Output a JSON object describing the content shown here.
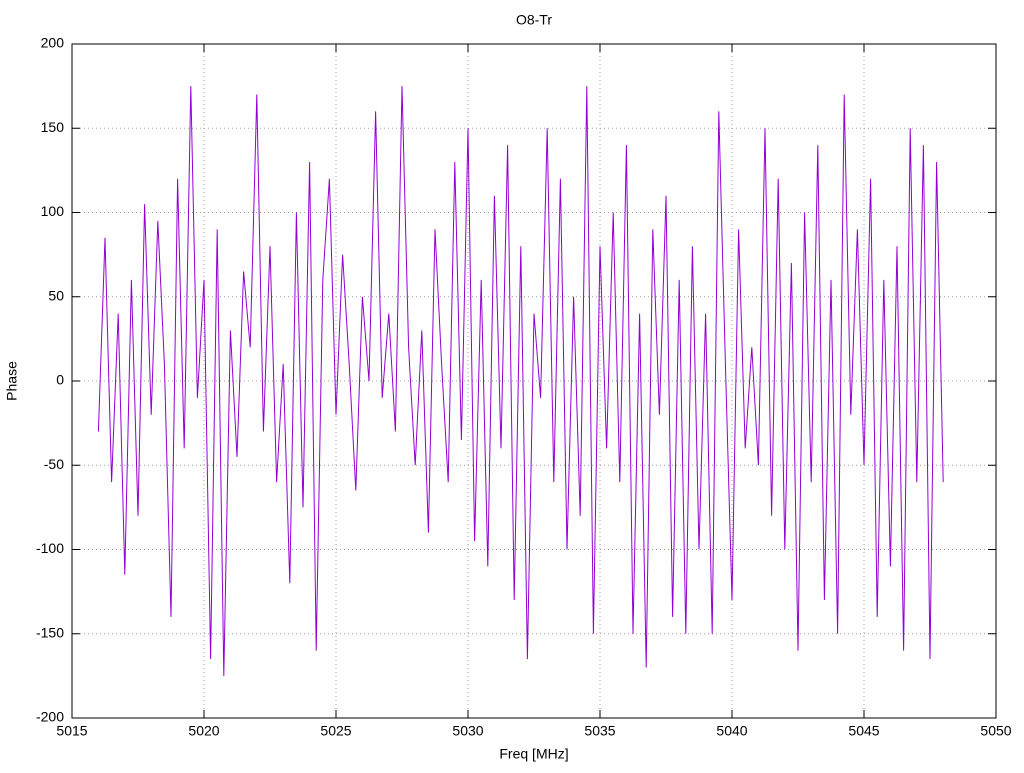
{
  "chart_data": {
    "type": "line",
    "title": "O8-Tr",
    "x_label": "Freq [MHz]",
    "y_label": "Phase",
    "xlim": [
      5015,
      5050
    ],
    "xticks": [
      5015,
      5020,
      5025,
      5030,
      5035,
      5040,
      5045,
      5050
    ],
    "ylim": [
      -200,
      200
    ],
    "yticks": [
      -200,
      -150,
      -100,
      -50,
      0,
      50,
      100,
      150,
      200
    ],
    "grid": true,
    "series": [
      {
        "color": "#9400d3",
        "x": [
          5016,
          5016.25,
          5016.5,
          5016.75,
          5017,
          5017.25,
          5017.5,
          5017.75,
          5018,
          5018.25,
          5018.5,
          5018.75,
          5019,
          5019.25,
          5019.5,
          5019.75,
          5020,
          5020.25,
          5020.5,
          5020.75,
          5021,
          5021.25,
          5021.5,
          5021.75,
          5022,
          5022.25,
          5022.5,
          5022.75,
          5023,
          5023.25,
          5023.5,
          5023.75,
          5024,
          5024.25,
          5024.5,
          5024.75,
          5025,
          5025.25,
          5025.5,
          5025.75,
          5026,
          5026.25,
          5026.5,
          5026.75,
          5027,
          5027.25,
          5027.5,
          5027.75,
          5028,
          5028.25,
          5028.5,
          5028.75,
          5029,
          5029.25,
          5029.5,
          5029.75,
          5030,
          5030.25,
          5030.5,
          5030.75,
          5031,
          5031.25,
          5031.5,
          5031.75,
          5032,
          5032.25,
          5032.5,
          5032.75,
          5033,
          5033.25,
          5033.5,
          5033.75,
          5034,
          5034.25,
          5034.5,
          5034.75,
          5035,
          5035.25,
          5035.5,
          5035.75,
          5036,
          5036.25,
          5036.5,
          5036.75,
          5037,
          5037.25,
          5037.5,
          5037.75,
          5038,
          5038.25,
          5038.5,
          5038.75,
          5039,
          5039.25,
          5039.5,
          5039.75,
          5040,
          5040.25,
          5040.5,
          5040.75,
          5041,
          5041.25,
          5041.5,
          5041.75,
          5042,
          5042.25,
          5042.5,
          5042.75,
          5043,
          5043.25,
          5043.5,
          5043.75,
          5044,
          5044.25,
          5044.5,
          5044.75,
          5045,
          5045.25,
          5045.5,
          5045.75,
          5046,
          5046.25,
          5046.5,
          5046.75,
          5047,
          5047.25,
          5047.5,
          5047.75,
          5048
        ],
        "values": [
          -30,
          85,
          -60,
          40,
          -115,
          60,
          -80,
          105,
          -20,
          95,
          10,
          -140,
          120,
          -40,
          175,
          -10,
          60,
          -165,
          90,
          -175,
          30,
          -45,
          65,
          20,
          170,
          -30,
          80,
          -60,
          10,
          -120,
          100,
          -75,
          130,
          -160,
          60,
          120,
          -20,
          75,
          10,
          -65,
          50,
          0,
          160,
          -10,
          40,
          -30,
          175,
          20,
          -50,
          30,
          -90,
          90,
          10,
          -60,
          130,
          -35,
          150,
          -95,
          60,
          -110,
          110,
          -40,
          140,
          -130,
          80,
          -165,
          40,
          -10,
          150,
          -60,
          120,
          -100,
          50,
          -80,
          175,
          -150,
          80,
          -40,
          100,
          -60,
          140,
          -150,
          40,
          -170,
          90,
          -20,
          110,
          -140,
          60,
          -150,
          80,
          -100,
          40,
          -150,
          160,
          10,
          -130,
          90,
          -40,
          20,
          -50,
          150,
          -80,
          120,
          -100,
          70,
          -160,
          100,
          -60,
          140,
          -130,
          60,
          -150,
          170,
          -20,
          90,
          -50,
          120,
          -140,
          60,
          -110,
          80,
          -160,
          150,
          -60,
          140,
          -165,
          130,
          -60
        ]
      }
    ]
  }
}
